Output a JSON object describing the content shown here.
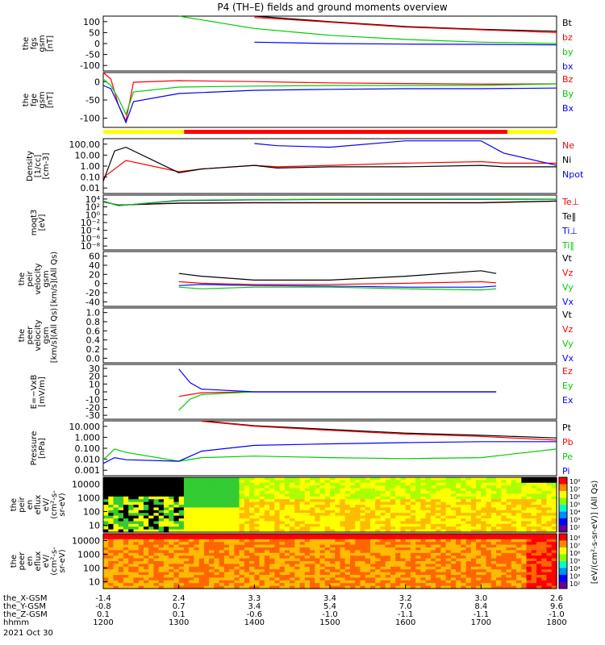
{
  "title": "P4 (TH–E) fields and ground moments overview",
  "colors": {
    "black": "#000000",
    "red": "#ff0000",
    "green": "#00cc00",
    "blue": "#0000ff",
    "lime": "#00ff00",
    "yellow": "#ffff00",
    "bar_red": "#ff0000"
  },
  "panels": [
    {
      "id": "fgs",
      "ylabel": [
        "the",
        "fgs",
        "gsm",
        "[nT]"
      ],
      "ticks": [
        "100",
        "50",
        "0",
        "-50",
        "-100"
      ],
      "ymin": -100,
      "ymax": 100,
      "scale": "linear",
      "legend": [
        {
          "label": "Bt",
          "color": "#000000"
        },
        {
          "label": "bz",
          "color": "#ff0000"
        },
        {
          "label": "by",
          "color": "#00cc00"
        },
        {
          "label": "bx",
          "color": "#0000ff"
        }
      ]
    },
    {
      "id": "fge",
      "ylabel": [
        "the",
        "fge",
        "gsm",
        "[nT]"
      ],
      "ticks": [
        "0",
        "-50",
        "-100"
      ],
      "ymin": -130,
      "ymax": 40,
      "scale": "linear",
      "legend": [
        {
          "label": "Bz",
          "color": "#ff0000"
        },
        {
          "label": "By",
          "color": "#00cc00"
        },
        {
          "label": "Bx",
          "color": "#0000ff"
        }
      ]
    },
    {
      "id": "density",
      "ylabel": [
        "Density",
        "[1/cc]",
        "[cm-3]"
      ],
      "ticks": [
        "100.00",
        "10.00",
        "1.00",
        "0.10",
        "0.01"
      ],
      "ymin": 0.01,
      "ymax": 300,
      "scale": "log",
      "legend": [
        {
          "label": "Ne",
          "color": "#ff0000"
        },
        {
          "label": "Ni",
          "color": "#000000"
        },
        {
          "label": "Npot",
          "color": "#0000ff"
        }
      ]
    },
    {
      "id": "temp",
      "ylabel": [
        "moqt3",
        "[eV]"
      ],
      "ticks": [
        "10⁴",
        "10²",
        "10⁰",
        "10⁻²",
        "10⁻⁴",
        "10⁻⁶",
        "10⁻⁸"
      ],
      "ymin": 1e-09,
      "ymax": 100000.0,
      "scale": "log",
      "legend": [
        {
          "label": "Te⊥",
          "color": "#ff0000"
        },
        {
          "label": "Te‖",
          "color": "#000000"
        },
        {
          "label": "Ti⊥",
          "color": "#0000ff"
        },
        {
          "label": "Ti‖",
          "color": "#00cc00"
        }
      ]
    },
    {
      "id": "peir_vel",
      "ylabel": [
        "the",
        "peir",
        "velocity",
        "gsm",
        "[km/s](All Qs)"
      ],
      "ticks": [
        "60",
        "40",
        "20",
        "0",
        "-20",
        "-40"
      ],
      "ymin": -40,
      "ymax": 60,
      "scale": "linear",
      "legend": [
        {
          "label": "Vt",
          "color": "#000000"
        },
        {
          "label": "Vz",
          "color": "#ff0000"
        },
        {
          "label": "Vy",
          "color": "#00cc00"
        },
        {
          "label": "Vx",
          "color": "#0000ff"
        }
      ]
    },
    {
      "id": "peer_vel",
      "ylabel": [
        "the",
        "peer",
        "velocity",
        "gsm",
        "[km/s](All Qs)"
      ],
      "ticks": [
        "1.0",
        "0.8",
        "0.6",
        "0.4",
        "0.2",
        "0.0"
      ],
      "ymin": 0,
      "ymax": 1,
      "scale": "linear",
      "legend": [
        {
          "label": "Vt",
          "color": "#000000"
        },
        {
          "label": "Vz",
          "color": "#ff0000"
        },
        {
          "label": "Vy",
          "color": "#00cc00"
        },
        {
          "label": "Vx",
          "color": "#0000ff"
        }
      ]
    },
    {
      "id": "efield",
      "ylabel": [
        "E=−VxB",
        "[mV/m]"
      ],
      "ticks": [
        "30",
        "20",
        "10",
        "0",
        "-10",
        "-20",
        "-30"
      ],
      "ymin": -30,
      "ymax": 30,
      "scale": "linear",
      "legend": [
        {
          "label": "Ez",
          "color": "#ff0000"
        },
        {
          "label": "Ey",
          "color": "#00cc00"
        },
        {
          "label": "Ex",
          "color": "#0000ff"
        }
      ]
    },
    {
      "id": "pressure",
      "ylabel": [
        "Pressure",
        "[nPa]"
      ],
      "ticks": [
        "10.000",
        "1.000",
        "0.100",
        "0.010",
        "0.001"
      ],
      "ymin": 0.001,
      "ymax": 30,
      "scale": "log",
      "legend": [
        {
          "label": "Pt",
          "color": "#000000"
        },
        {
          "label": "Pb",
          "color": "#ff0000"
        },
        {
          "label": "Pe",
          "color": "#00cc00"
        },
        {
          "label": "Pi",
          "color": "#0000ff"
        }
      ]
    },
    {
      "id": "peir_en",
      "ylabel": [
        "the",
        "peir",
        "en",
        "eflux",
        "eV/",
        "(cm²-s-",
        "sr-eV)"
      ],
      "ticks": [
        "10000",
        "1000",
        "100",
        "10"
      ],
      "ymin": 5,
      "ymax": 30000,
      "scale": "log",
      "legend": []
    },
    {
      "id": "peer_en",
      "ylabel": [
        "the",
        "peer",
        "en",
        "eflux",
        "eV/",
        "(cm²-s-",
        "sr-eV)"
      ],
      "ticks": [
        "10000",
        "1000",
        "100",
        "10"
      ],
      "ymin": 5,
      "ymax": 30000,
      "scale": "log",
      "legend": []
    }
  ],
  "colorbar": {
    "ticks": [
      "10⁸",
      "10⁷",
      "10⁶",
      "10⁵",
      "10⁴",
      "10³",
      "10²"
    ],
    "label": "[eV/(cm²-s-sr-eV)] (All Qs)"
  },
  "xaxis": {
    "tick_labels": [
      {
        "rows": [
          "-1.4",
          "-0.8",
          "0.1",
          "1200"
        ]
      },
      {
        "rows": [
          "2.4",
          "0.7",
          "0.1",
          "1300"
        ]
      },
      {
        "rows": [
          "3.3",
          "3.4",
          "-0.6",
          "1400"
        ]
      },
      {
        "rows": [
          "3.4",
          "5.4",
          "-1.0",
          "1500"
        ]
      },
      {
        "rows": [
          "3.2",
          "7.0",
          "-1.1",
          "1600"
        ]
      },
      {
        "rows": [
          "3.0",
          "8.4",
          "-1.1",
          "1700"
        ]
      },
      {
        "rows": [
          "2.6",
          "9.6",
          "-1.0",
          "1800"
        ]
      }
    ],
    "row_labels": [
      "the_X-GSM",
      "the_Y-GSM",
      "the_Z-GSM",
      "hhmm"
    ],
    "date": "2021 Oct 30"
  },
  "chart_data": [
    {
      "type": "line",
      "title": "P4 (TH–E) fields and ground moments overview",
      "panel": "the fgs gsm [nT]",
      "x": [
        1200,
        1220,
        1240,
        1300,
        1400,
        1500,
        1600,
        1700,
        1800
      ],
      "series": [
        {
          "name": "Bt",
          "values": [
            null,
            null,
            null,
            null,
            100,
            80,
            62,
            52,
            45
          ]
        },
        {
          "name": "bz",
          "values": [
            null,
            null,
            null,
            null,
            95,
            78,
            60,
            50,
            40
          ]
        },
        {
          "name": "by",
          "values": [
            null,
            null,
            null,
            100,
            55,
            30,
            15,
            5,
            0
          ]
        },
        {
          "name": "bx",
          "values": [
            null,
            null,
            null,
            null,
            5,
            0,
            -2,
            -3,
            -5
          ]
        }
      ],
      "ylim": [
        -100,
        100
      ]
    },
    {
      "type": "line",
      "panel": "the fge gsm [nT]",
      "x": [
        1200,
        1210,
        1220,
        1230,
        1240,
        1300,
        1400,
        1500,
        1600,
        1700,
        1800
      ],
      "series": [
        {
          "name": "Bz",
          "values": [
            40,
            20,
            -60,
            -110,
            10,
            15,
            12,
            8,
            6,
            4,
            5
          ]
        },
        {
          "name": "By",
          "values": [
            20,
            0,
            -40,
            -90,
            -20,
            -5,
            -2,
            0,
            0,
            0,
            5
          ]
        },
        {
          "name": "Bx",
          "values": [
            0,
            -10,
            -60,
            -115,
            -50,
            -25,
            -15,
            -12,
            -10,
            -10,
            -8
          ]
        }
      ],
      "ylim": [
        -130,
        40
      ]
    },
    {
      "type": "line",
      "panel": "Density [1/cc]",
      "x": [
        1200,
        1215,
        1230,
        1300,
        1330,
        1400,
        1430,
        1500,
        1600,
        1700,
        1730,
        1800
      ],
      "series": [
        {
          "name": "Ne",
          "values": [
            0.2,
            1.0,
            5.0,
            0.6,
            1.0,
            2.0,
            1.5,
            2.0,
            3.0,
            4.0,
            3.0,
            3.0
          ]
        },
        {
          "name": "Ni",
          "values": [
            0.1,
            30,
            60,
            0.5,
            1.0,
            2.0,
            1.2,
            1.5,
            1.5,
            2.0,
            1.5,
            1.5
          ]
        },
        {
          "name": "Npot",
          "values": [
            null,
            null,
            null,
            null,
            null,
            120,
            80,
            60,
            200,
            200,
            20,
            2
          ]
        }
      ],
      "ylim": [
        0.01,
        300
      ]
    },
    {
      "type": "line",
      "panel": "moqt3 [eV]",
      "x": [
        1200,
        1220,
        1300,
        1400,
        1500,
        1600,
        1700,
        1800
      ],
      "series": [
        {
          "name": "Te⊥",
          "values": [
            2000,
            300,
            800,
            1000,
            1000,
            1000,
            1000,
            3000
          ]
        },
        {
          "name": "Te‖",
          "values": [
            2000,
            300,
            900,
            1200,
            1200,
            1200,
            1200,
            3000
          ]
        },
        {
          "name": "Ti⊥",
          "values": [
            3000,
            200,
            4000,
            6000,
            8000,
            8000,
            9000,
            9000
          ]
        },
        {
          "name": "Ti‖",
          "values": [
            3000,
            200,
            5000,
            7000,
            9000,
            10000,
            11000,
            10000
          ]
        }
      ],
      "ylim": [
        1e-09,
        100000
      ]
    },
    {
      "type": "line",
      "panel": "the peir velocity gsm [km/s](All Qs)",
      "x": [
        1300,
        1330,
        1400,
        1500,
        1600,
        1700,
        1720
      ],
      "series": [
        {
          "name": "Vt",
          "values": [
            20,
            15,
            8,
            8,
            15,
            25,
            20
          ]
        },
        {
          "name": "Vz",
          "values": [
            5,
            2,
            0,
            0,
            2,
            5,
            3
          ]
        },
        {
          "name": "Vy",
          "values": [
            -5,
            -8,
            -5,
            -5,
            -8,
            -10,
            -8
          ]
        },
        {
          "name": "Vx",
          "values": [
            -2,
            0,
            -2,
            -3,
            -5,
            -5,
            -3
          ]
        }
      ],
      "ylim": [
        -40,
        60
      ]
    },
    {
      "type": "line",
      "panel": "the peer velocity gsm [km/s](All Qs)",
      "x": [],
      "series": [],
      "ylim": [
        0,
        1
      ]
    },
    {
      "type": "line",
      "panel": "E=-VxB [mV/m]",
      "x": [
        1300,
        1315,
        1330,
        1400,
        1500,
        1600,
        1720
      ],
      "series": [
        {
          "name": "Ez",
          "values": [
            -5,
            -3,
            -1,
            0,
            0,
            0,
            0
          ]
        },
        {
          "name": "Ey",
          "values": [
            -20,
            -8,
            -3,
            0,
            0,
            0,
            0
          ]
        },
        {
          "name": "Ex",
          "values": [
            25,
            10,
            3,
            0,
            0,
            0,
            0
          ]
        }
      ],
      "ylim": [
        -30,
        30
      ]
    },
    {
      "type": "line",
      "panel": "Pressure [nPa]",
      "x": [
        1200,
        1215,
        1230,
        1300,
        1330,
        1400,
        1500,
        1600,
        1700,
        1800
      ],
      "series": [
        {
          "name": "Pt",
          "values": [
            null,
            null,
            null,
            null,
            30,
            12,
            6,
            3,
            2,
            1.2
          ]
        },
        {
          "name": "Pb",
          "values": [
            null,
            null,
            null,
            null,
            28,
            11,
            5,
            2.5,
            1.6,
            0.8
          ]
        },
        {
          "name": "Pe",
          "values": [
            0.02,
            0.15,
            0.08,
            0.015,
            0.03,
            0.04,
            0.03,
            0.025,
            0.03,
            0.15
          ]
        },
        {
          "name": "Pi",
          "values": [
            0.01,
            0.03,
            0.02,
            0.015,
            0.1,
            0.3,
            0.4,
            0.5,
            0.6,
            0.6
          ]
        }
      ],
      "ylim": [
        0.001,
        30
      ]
    },
    {
      "type": "heatmap",
      "panel": "the peir en eflux eV/(cm2-s-sr-eV)",
      "x": [
        1200,
        1800
      ],
      "ylim": [
        5,
        30000
      ],
      "zlim": [
        100,
        100000000
      ]
    },
    {
      "type": "heatmap",
      "panel": "the peer en eflux eV/(cm2-s-sr-eV)",
      "x": [
        1200,
        1800
      ],
      "ylim": [
        5,
        30000
      ],
      "zlim": [
        100,
        100000000
      ]
    }
  ]
}
